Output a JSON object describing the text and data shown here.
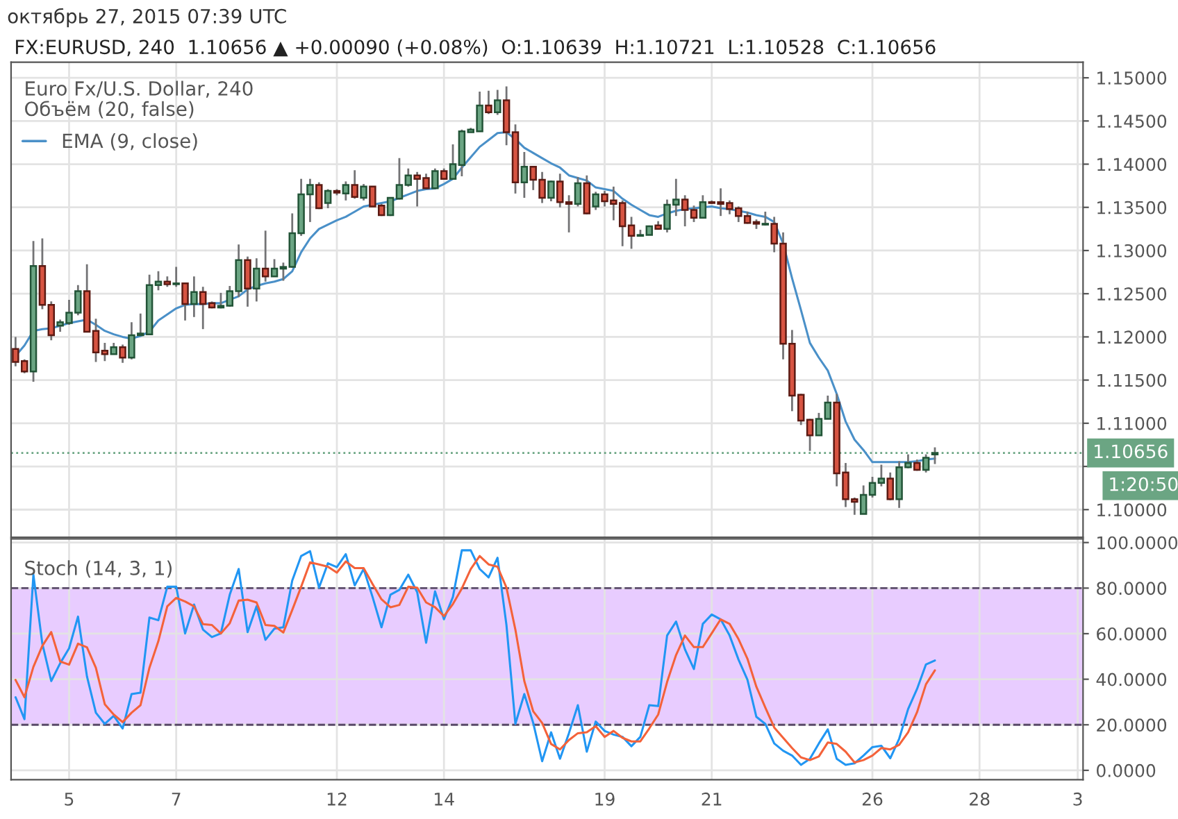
{
  "chart_data": [
    {
      "type": "candlestick",
      "title": "Euro Fx/U.S. Dollar, 240",
      "annotations": [
        "октябрь 27, 2015 07:39 UTC",
        "FX:EURUSD, 240  1.10656 ▲ +0.00090 (+0.08%)  O:1.10639  H:1.10721  L:1.10528  C:1.10656",
        "Объём (20, false)",
        "1:20:50"
      ],
      "categories": [
        null,
        null,
        null,
        null,
        null,
        null,
        "5",
        null,
        null,
        null,
        null,
        null,
        null,
        null,
        null,
        null,
        null,
        null,
        "7",
        null,
        null,
        null,
        null,
        null,
        null,
        null,
        null,
        null,
        null,
        null,
        null,
        null,
        null,
        null,
        null,
        null,
        "12",
        null,
        null,
        null,
        null,
        null,
        null,
        null,
        null,
        null,
        null,
        null,
        "14",
        null,
        null,
        null,
        null,
        null,
        null,
        null,
        null,
        null,
        null,
        null,
        null,
        null,
        null,
        null,
        null,
        null,
        "19",
        null,
        null,
        null,
        null,
        null,
        null,
        null,
        null,
        null,
        null,
        null,
        "21",
        null,
        null,
        null,
        null,
        null,
        null,
        null,
        null,
        null,
        null,
        null,
        null,
        null,
        null,
        null,
        null,
        null,
        "26",
        null,
        null,
        null,
        null,
        null,
        null,
        null,
        null,
        null,
        null,
        null,
        "28",
        null,
        null,
        null,
        null,
        null,
        null,
        null,
        null,
        null,
        null,
        "3"
      ],
      "ohlc": [
        [
          1.1186,
          1.12,
          1.1166,
          1.1171
        ],
        [
          1.1172,
          1.1174,
          1.1158,
          1.116
        ],
        [
          1.116,
          1.1311,
          1.1148,
          1.1282
        ],
        [
          1.1282,
          1.1314,
          1.1232,
          1.1237
        ],
        [
          1.1237,
          1.1241,
          1.1196,
          1.1202
        ],
        [
          1.1213,
          1.122,
          1.1206,
          1.1217
        ],
        [
          1.1216,
          1.1243,
          1.1214,
          1.1228
        ],
        [
          1.1228,
          1.126,
          1.1225,
          1.1253
        ],
        [
          1.1253,
          1.1284,
          1.1206,
          1.1206
        ],
        [
          1.1207,
          1.1221,
          1.1171,
          1.1182
        ],
        [
          1.1184,
          1.1193,
          1.1172,
          1.118
        ],
        [
          1.118,
          1.1193,
          1.118,
          1.1188
        ],
        [
          1.1188,
          1.1191,
          1.117,
          1.1176
        ],
        [
          1.1176,
          1.1217,
          1.1174,
          1.1202
        ],
        [
          1.1202,
          1.1227,
          1.1202,
          1.1204
        ],
        [
          1.1203,
          1.1272,
          1.1203,
          1.126
        ],
        [
          1.126,
          1.1276,
          1.1254,
          1.1264
        ],
        [
          1.1264,
          1.127,
          1.1258,
          1.1261
        ],
        [
          1.1261,
          1.1281,
          1.1258,
          1.1262
        ],
        [
          1.1262,
          1.1262,
          1.1219,
          1.1238
        ],
        [
          1.1238,
          1.127,
          1.1223,
          1.1252
        ],
        [
          1.1252,
          1.1258,
          1.1209,
          1.1238
        ],
        [
          1.1239,
          1.1241,
          1.1233,
          1.1234
        ],
        [
          1.1234,
          1.1251,
          1.1233,
          1.1236
        ],
        [
          1.1236,
          1.1259,
          1.1235,
          1.1253
        ],
        [
          1.1253,
          1.1307,
          1.1246,
          1.1289
        ],
        [
          1.1289,
          1.1293,
          1.1235,
          1.1256
        ],
        [
          1.1256,
          1.1291,
          1.1241,
          1.1279
        ],
        [
          1.1279,
          1.1323,
          1.1264,
          1.127
        ],
        [
          1.127,
          1.129,
          1.127,
          1.1279
        ],
        [
          1.1279,
          1.1286,
          1.1265,
          1.1281
        ],
        [
          1.1281,
          1.1343,
          1.128,
          1.132
        ],
        [
          1.132,
          1.1383,
          1.1317,
          1.1365
        ],
        [
          1.1365,
          1.1383,
          1.1333,
          1.1376
        ],
        [
          1.1376,
          1.1379,
          1.1348,
          1.1349
        ],
        [
          1.1355,
          1.1371,
          1.1349,
          1.1369
        ],
        [
          1.1369,
          1.1371,
          1.1364,
          1.1367
        ],
        [
          1.1366,
          1.138,
          1.1358,
          1.1376
        ],
        [
          1.1376,
          1.1393,
          1.136,
          1.1362
        ],
        [
          1.1361,
          1.1377,
          1.1358,
          1.1374
        ],
        [
          1.1374,
          1.1374,
          1.1351,
          1.1351
        ],
        [
          1.1352,
          1.1354,
          1.134,
          1.1341
        ],
        [
          1.1341,
          1.1361,
          1.134,
          1.1361
        ],
        [
          1.136,
          1.1407,
          1.1359,
          1.1376
        ],
        [
          1.1376,
          1.1395,
          1.1374,
          1.1387
        ],
        [
          1.1387,
          1.1391,
          1.1351,
          1.1383
        ],
        [
          1.1384,
          1.1389,
          1.1371,
          1.1372
        ],
        [
          1.1372,
          1.1395,
          1.1371,
          1.1392
        ],
        [
          1.1392,
          1.1395,
          1.1382,
          1.1383
        ],
        [
          1.1383,
          1.1423,
          1.1383,
          1.14
        ],
        [
          1.1399,
          1.144,
          1.1386,
          1.1438
        ],
        [
          1.1437,
          1.1442,
          1.1437,
          1.144
        ],
        [
          1.1438,
          1.1484,
          1.1438,
          1.1468
        ],
        [
          1.1468,
          1.1485,
          1.1458,
          1.146
        ],
        [
          1.146,
          1.1486,
          1.1457,
          1.1474
        ],
        [
          1.1474,
          1.149,
          1.1422,
          1.1437
        ],
        [
          1.1437,
          1.1446,
          1.1366,
          1.1379
        ],
        [
          1.1379,
          1.1414,
          1.1361,
          1.1397
        ],
        [
          1.1397,
          1.1397,
          1.137,
          1.1382
        ],
        [
          1.1382,
          1.1391,
          1.1355,
          1.1361
        ],
        [
          1.1361,
          1.1381,
          1.1357,
          1.138
        ],
        [
          1.138,
          1.1389,
          1.135,
          1.1356
        ],
        [
          1.1356,
          1.1364,
          1.1321,
          1.1354
        ],
        [
          1.1354,
          1.1385,
          1.1351,
          1.1378
        ],
        [
          1.1378,
          1.1387,
          1.1342,
          1.1343
        ],
        [
          1.1351,
          1.1368,
          1.1347,
          1.1365
        ],
        [
          1.1365,
          1.1369,
          1.1351,
          1.1357
        ],
        [
          1.1358,
          1.1374,
          1.1335,
          1.1354
        ],
        [
          1.1355,
          1.1358,
          1.1305,
          1.1328
        ],
        [
          1.1329,
          1.1339,
          1.1302,
          1.1317
        ],
        [
          1.1317,
          1.1324,
          1.1317,
          1.1318
        ],
        [
          1.1318,
          1.1329,
          1.1318,
          1.1328
        ],
        [
          1.1329,
          1.1334,
          1.1324,
          1.1325
        ],
        [
          1.1325,
          1.1359,
          1.1321,
          1.1353
        ],
        [
          1.1353,
          1.1383,
          1.134,
          1.1359
        ],
        [
          1.1359,
          1.1364,
          1.1328,
          1.1347
        ],
        [
          1.1347,
          1.1352,
          1.1333,
          1.1338
        ],
        [
          1.1338,
          1.1364,
          1.1337,
          1.1356
        ],
        [
          1.1356,
          1.1358,
          1.1354,
          1.1355
        ],
        [
          1.1356,
          1.1372,
          1.134,
          1.1354
        ],
        [
          1.1355,
          1.1358,
          1.1342,
          1.1348
        ],
        [
          1.1349,
          1.1351,
          1.1333,
          1.134
        ],
        [
          1.134,
          1.1345,
          1.1331,
          1.1332
        ],
        [
          1.1333,
          1.1336,
          1.1325,
          1.1331
        ],
        [
          1.133,
          1.1345,
          1.1329,
          1.1331
        ],
        [
          1.1331,
          1.1339,
          1.1298,
          1.1308
        ],
        [
          1.1308,
          1.1321,
          1.1174,
          1.1192
        ],
        [
          1.1192,
          1.1208,
          1.1114,
          1.1132
        ],
        [
          1.1133,
          1.1134,
          1.1098,
          1.1103
        ],
        [
          1.1104,
          1.1105,
          1.1068,
          1.1086
        ],
        [
          1.1086,
          1.1112,
          1.1086,
          1.1105
        ],
        [
          1.1105,
          1.1132,
          1.1105,
          1.1124
        ],
        [
          1.1124,
          1.1134,
          1.1027,
          1.1042
        ],
        [
          1.1043,
          1.1054,
          1.1003,
          1.1012
        ],
        [
          1.1012,
          1.1014,
          1.0994,
          1.1009
        ],
        [
          1.0995,
          1.1028,
          1.0995,
          1.1017
        ],
        [
          1.1017,
          1.1038,
          1.1014,
          1.1031
        ],
        [
          1.1031,
          1.1052,
          1.1027,
          1.1036
        ],
        [
          1.1036,
          1.1043,
          1.1011,
          1.1012
        ],
        [
          1.1012,
          1.1056,
          1.1002,
          1.1049
        ],
        [
          1.1049,
          1.1064,
          1.1048,
          1.1054
        ],
        [
          1.1054,
          1.1058,
          1.1045,
          1.1046
        ],
        [
          1.1046,
          1.1064,
          1.1043,
          1.106
        ],
        [
          1.10639,
          1.10721,
          1.10528,
          1.10656
        ],
        null,
        null,
        null,
        null,
        null,
        null,
        null,
        null,
        null,
        null,
        null,
        null,
        null,
        null,
        null,
        null
      ],
      "series": [
        {
          "type": "line",
          "name": "EMA (9, close)",
          "color": "#4a90c8",
          "values": [
            1.1178,
            1.119,
            1.1207,
            1.1209,
            1.121,
            1.1213,
            1.1216,
            1.1218,
            1.122,
            1.1214,
            1.1207,
            1.1203,
            1.12,
            1.1198,
            1.1201,
            1.1206,
            1.1219,
            1.1226,
            1.1233,
            1.1237,
            1.1238,
            1.1238,
            1.1239,
            1.1239,
            1.1243,
            1.1247,
            1.1255,
            1.1259,
            1.1262,
            1.1264,
            1.1267,
            1.1276,
            1.1298,
            1.1314,
            1.1325,
            1.133,
            1.1335,
            1.1339,
            1.1345,
            1.1351,
            1.1353,
            1.1355,
            1.1357,
            1.1361,
            1.1365,
            1.1369,
            1.1371,
            1.1372,
            1.1377,
            1.1383,
            1.1396,
            1.1408,
            1.142,
            1.1428,
            1.1436,
            1.1437,
            1.1429,
            1.1419,
            1.1413,
            1.1407,
            1.1401,
            1.1396,
            1.1387,
            1.1384,
            1.1381,
            1.1373,
            1.1371,
            1.1369,
            1.136,
            1.1353,
            1.1347,
            1.1341,
            1.1339,
            1.1343,
            1.1346,
            1.1348,
            1.1349,
            1.135,
            1.1351,
            1.1349,
            1.1348,
            1.1346,
            1.1344,
            1.1341,
            1.1339,
            1.1333,
            1.1308,
            1.1268,
            1.1231,
            1.1193,
            1.1176,
            1.1161,
            1.1134,
            1.1102,
            1.1081,
            1.1069,
            1.1055,
            1.1055,
            1.1055,
            1.1055,
            1.1055,
            1.1056,
            1.1058,
            1.1059,
            null,
            null,
            null,
            null,
            null,
            null,
            null,
            null,
            null,
            null,
            null,
            null,
            null,
            null,
            null,
            null
          ]
        }
      ],
      "ylim": [
        1.0968,
        1.1518
      ],
      "yticks": [
        {
          "value": 1.1,
          "label": "1.10000"
        },
        {
          "value": 1.105,
          "label": null
        },
        {
          "value": 1.11,
          "label": "1.11000"
        },
        {
          "value": 1.115,
          "label": "1.11500"
        },
        {
          "value": 1.12,
          "label": "1.12000"
        },
        {
          "value": 1.125,
          "label": "1.12500"
        },
        {
          "value": 1.13,
          "label": "1.13000"
        },
        {
          "value": 1.135,
          "label": "1.13500"
        },
        {
          "value": 1.14,
          "label": "1.14000"
        },
        {
          "value": 1.145,
          "label": "1.14500"
        },
        {
          "value": 1.15,
          "label": "1.15000"
        }
      ],
      "tick_labels": "y",
      "grid": true,
      "legend": "top left",
      "ref_lines": [
        {
          "axis": "y",
          "value": 1.10656,
          "label": "1.10656",
          "color": "#6ba583",
          "line_style": "dotted"
        }
      ]
    },
    {
      "type": "line",
      "title": "Stoch (14, 3, 1)",
      "categories": [
        null,
        null,
        null,
        null,
        null,
        null,
        "5",
        null,
        null,
        null,
        null,
        null,
        null,
        null,
        null,
        null,
        null,
        null,
        "7",
        null,
        null,
        null,
        null,
        null,
        null,
        null,
        null,
        null,
        null,
        null,
        null,
        null,
        null,
        null,
        null,
        null,
        "12",
        null,
        null,
        null,
        null,
        null,
        null,
        null,
        null,
        null,
        null,
        null,
        "14",
        null,
        null,
        null,
        null,
        null,
        null,
        null,
        null,
        null,
        null,
        null,
        null,
        null,
        null,
        null,
        null,
        null,
        "19",
        null,
        null,
        null,
        null,
        null,
        null,
        null,
        null,
        null,
        null,
        null,
        "21",
        null,
        null,
        null,
        null,
        null,
        null,
        null,
        null,
        null,
        null,
        null,
        null,
        null,
        null,
        null,
        null,
        null,
        "26",
        null,
        null,
        null,
        null,
        null,
        null,
        null,
        null,
        null,
        null,
        null,
        "28",
        null,
        null,
        null,
        null,
        null,
        null,
        null,
        null,
        null,
        null,
        "3"
      ],
      "series": [
        {
          "color": "#2196f3",
          "values": [
            32.1,
            22.5,
            85.9,
            55.6,
            39.2,
            47.0,
            53.6,
            67.5,
            41.3,
            25.3,
            20.4,
            23.9,
            18.4,
            33.5,
            34.1,
            67.1,
            65.9,
            80.6,
            80.6,
            60.1,
            72.8,
            61.8,
            58.5,
            60.1,
            77.1,
            88.4,
            60.7,
            72.0,
            57.3,
            62.2,
            62.8,
            83.3,
            94.1,
            96.2,
            80.2,
            90.9,
            89.2,
            94.9,
            81.2,
            88.4,
            76.1,
            62.8,
            77.1,
            79.2,
            85.9,
            78.2,
            56.0,
            78.6,
            66.3,
            76.1,
            96.6,
            96.6,
            88.4,
            84.7,
            93.3,
            63.8,
            20.4,
            33.5,
            20.8,
            4.0,
            16.7,
            5.1,
            16.3,
            28.6,
            8.2,
            21.4,
            17.3,
            15.7,
            14.7,
            10.6,
            14.7,
            28.6,
            28.2,
            59.2,
            65.3,
            53.1,
            44.5,
            64.3,
            68.4,
            66.3,
            59.2,
            48.6,
            39.8,
            23.5,
            20.4,
            11.8,
            8.6,
            6.5,
            2.4,
            5.1,
            11.8,
            18.0,
            5.1,
            2.4,
            3.1,
            6.5,
            10.2,
            10.8,
            5.3,
            13.9,
            26.9,
            35.7,
            46.5,
            48.2,
            null,
            null,
            null,
            null,
            null,
            null,
            null,
            null,
            null,
            null,
            null,
            null,
            null,
            null,
            null,
            null
          ]
        },
        {
          "color": "#f4623a",
          "values": [
            39.7,
            32.1,
            45.4,
            54.6,
            60.7,
            47.8,
            46.4,
            55.6,
            54.0,
            45.0,
            29.0,
            24.5,
            21.2,
            25.3,
            28.6,
            45.0,
            56.7,
            72.0,
            75.7,
            74.1,
            72.0,
            64.2,
            63.8,
            60.1,
            64.6,
            74.5,
            74.9,
            73.7,
            63.8,
            63.4,
            60.5,
            70.4,
            80.6,
            91.3,
            90.4,
            89.4,
            86.8,
            91.7,
            88.8,
            88.8,
            81.8,
            75.1,
            71.6,
            72.6,
            80.6,
            80.2,
            73.7,
            71.6,
            67.7,
            73.0,
            79.8,
            88.4,
            94.1,
            90.4,
            89.4,
            80.2,
            61.8,
            39.2,
            25.9,
            20.8,
            11.6,
            9.2,
            13.3,
            16.3,
            16.7,
            19.4,
            14.7,
            17.3,
            14.3,
            12.7,
            12.7,
            18.4,
            24.5,
            38.8,
            50.6,
            59.2,
            54.1,
            54.1,
            60.2,
            66.3,
            64.3,
            57.6,
            49.0,
            36.7,
            27.6,
            18.8,
            14.3,
            9.8,
            5.7,
            4.5,
            6.1,
            12.2,
            11.6,
            8.2,
            3.5,
            4.5,
            6.5,
            9.8,
            9.2,
            11.2,
            16.7,
            25.5,
            37.8,
            43.9,
            null,
            null,
            null,
            null,
            null,
            null,
            null,
            null,
            null,
            null,
            null,
            null,
            null,
            null,
            null,
            null
          ]
        }
      ],
      "ylim": [
        -4.1,
        101.6
      ],
      "yticks": [
        {
          "value": 0,
          "label": "0.0000"
        },
        {
          "value": 20,
          "label": "20.0000"
        },
        {
          "value": 40,
          "label": "40.0000"
        },
        {
          "value": 60,
          "label": "60.0000"
        },
        {
          "value": 80,
          "label": "80.0000"
        },
        {
          "value": 100,
          "label": "100.0000"
        }
      ],
      "grid": true,
      "bands": [
        {
          "axis": "y",
          "from": 20,
          "to": 80,
          "color": "#e8ccff"
        }
      ]
    }
  ]
}
